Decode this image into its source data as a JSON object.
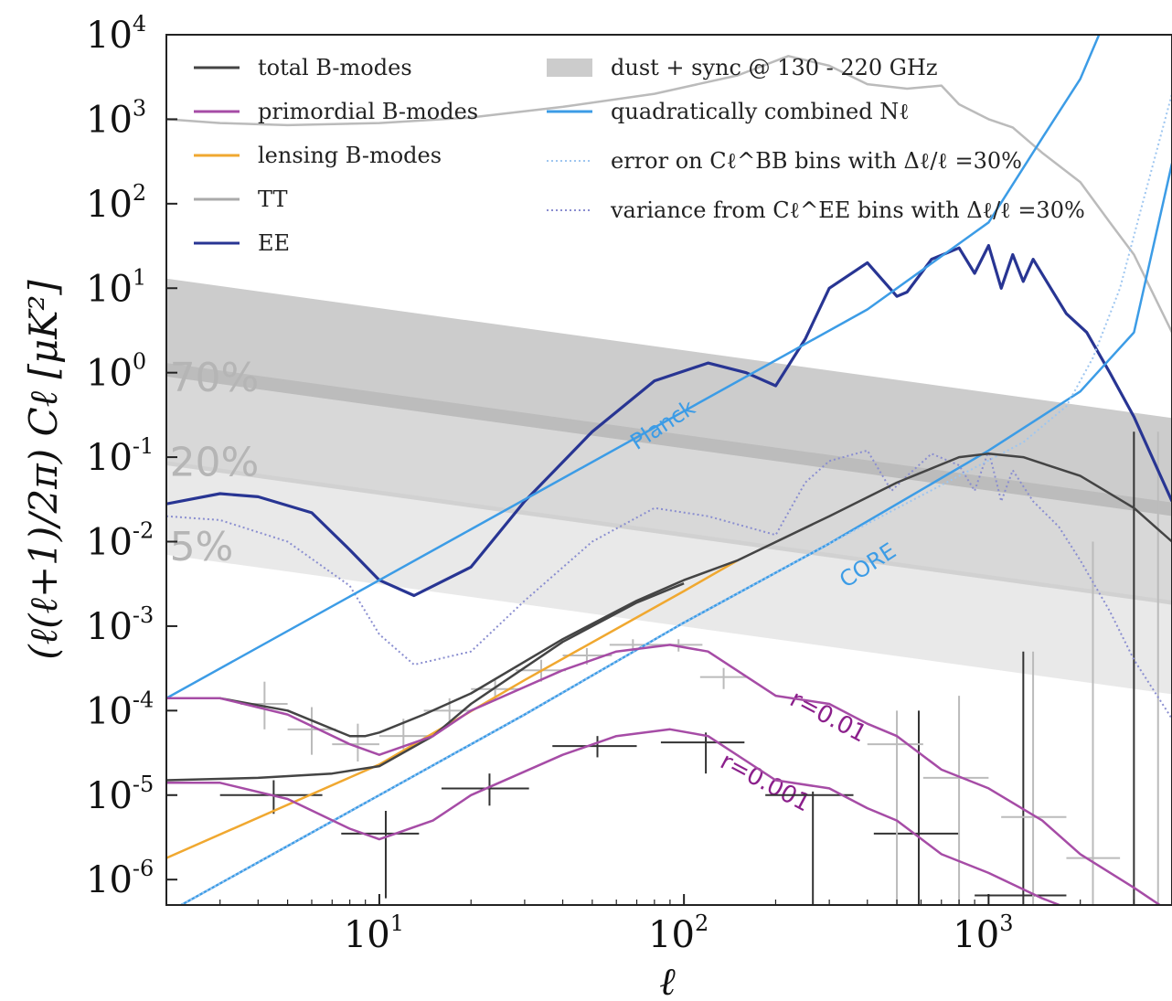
{
  "chart_data": {
    "type": "line",
    "x_scale": "log",
    "y_scale": "log",
    "xlim": [
      2,
      4000
    ],
    "ylim": [
      5e-07,
      10000
    ],
    "xlabel": "ℓ",
    "ylabel": "(ℓ(ℓ+1)/2π) Cℓ [μK²]",
    "x_ticks": [
      {
        "value": 10,
        "label": "10",
        "exp": "1"
      },
      {
        "value": 100,
        "label": "10",
        "exp": "2"
      },
      {
        "value": 1000,
        "label": "10",
        "exp": "3"
      }
    ],
    "y_ticks": [
      {
        "value": 1e-06,
        "label": "10",
        "exp": "-6"
      },
      {
        "value": 1e-05,
        "label": "10",
        "exp": "-5"
      },
      {
        "value": 0.0001,
        "label": "10",
        "exp": "-4"
      },
      {
        "value": 0.001,
        "label": "10",
        "exp": "-3"
      },
      {
        "value": 0.01,
        "label": "10",
        "exp": "-2"
      },
      {
        "value": 0.1,
        "label": "10",
        "exp": "-1"
      },
      {
        "value": 1,
        "label": "10",
        "exp": "0"
      },
      {
        "value": 10,
        "label": "10",
        "exp": "1"
      },
      {
        "value": 100,
        "label": "10",
        "exp": "2"
      },
      {
        "value": 1000,
        "label": "10",
        "exp": "3"
      },
      {
        "value": 10000,
        "label": "10",
        "exp": "4"
      }
    ],
    "legend_position": "top",
    "legend": [
      {
        "label": "total B-modes",
        "color": "#444444",
        "style": "solid"
      },
      {
        "label": "primordial B-modes",
        "color": "#a64ca6",
        "style": "solid"
      },
      {
        "label": "lensing B-modes",
        "color": "#f0a830",
        "style": "solid"
      },
      {
        "label": "TT",
        "color": "#aaaaaa",
        "style": "solid"
      },
      {
        "label": "EE",
        "color": "#283593",
        "style": "solid"
      },
      {
        "label": "dust + sync @ 130 - 220 GHz",
        "color": "#cccccc",
        "style": "band"
      },
      {
        "label": "quadratically combined Nℓ",
        "color": "#3c9ce6",
        "style": "solid"
      },
      {
        "label": "error on Cℓ^BB bins with Δℓ/ℓ =30%",
        "color": "#9ec6f0",
        "style": "dotted"
      },
      {
        "label": "variance from Cℓ^EE bins with Δℓ/ℓ =30%",
        "color": "#8a8ed0",
        "style": "dotted"
      }
    ],
    "foreground_bands": [
      {
        "label": "70%",
        "color": "#9a9a9a",
        "opacity": 0.5,
        "y_top_at_2": 13,
        "y_bot_at_2": 0.9,
        "slope": -0.5
      },
      {
        "label": "20%",
        "color": "#a8a8a8",
        "opacity": 0.45,
        "y_top_at_2": 1.3,
        "y_bot_at_2": 0.08,
        "slope": -0.5
      },
      {
        "label": "5%",
        "color": "#c8c8c8",
        "opacity": 0.4,
        "y_top_at_2": 0.09,
        "y_bot_at_2": 0.007,
        "slope": -0.5
      }
    ],
    "series": [
      {
        "name": "TT",
        "color": "#bbbbbb",
        "width": 2.5,
        "dash": "",
        "x": [
          2,
          3,
          5,
          10,
          20,
          40,
          80,
          150,
          220,
          300,
          400,
          540,
          700,
          800,
          1000,
          1200,
          1500,
          2000,
          2500,
          3000,
          4000
        ],
        "y": [
          1000,
          900,
          850,
          900,
          1050,
          1400,
          2000,
          3300,
          5600,
          4300,
          2600,
          2300,
          2500,
          1500,
          1000,
          800,
          400,
          180,
          60,
          25,
          3
        ]
      },
      {
        "name": "EE",
        "color": "#283593",
        "width": 3.2,
        "dash": "",
        "x": [
          2,
          3,
          4,
          6,
          8,
          10,
          13,
          20,
          30,
          50,
          80,
          120,
          160,
          200,
          250,
          300,
          400,
          500,
          540,
          650,
          800,
          900,
          1000,
          1100,
          1200,
          1300,
          1400,
          1600,
          1800,
          2100,
          2500,
          3000,
          4000
        ],
        "y": [
          0.028,
          0.037,
          0.034,
          0.022,
          0.008,
          0.0035,
          0.0023,
          0.005,
          0.03,
          0.2,
          0.8,
          1.3,
          1.0,
          0.7,
          2.5,
          10,
          20,
          8,
          9,
          22,
          30,
          15,
          32,
          10,
          25,
          12,
          22,
          10,
          5,
          3,
          1.0,
          0.3,
          0.03
        ]
      },
      {
        "name": "EE variance",
        "color": "#8a8ed0",
        "width": 2,
        "dash": "2,3",
        "x": [
          2,
          3,
          5,
          8,
          10,
          13,
          20,
          30,
          50,
          80,
          120,
          160,
          200,
          250,
          300,
          400,
          480,
          540,
          650,
          800,
          900,
          1000,
          1100,
          1200,
          1400,
          1700,
          2000,
          2500,
          3000,
          4000
        ],
        "y": [
          0.02,
          0.018,
          0.01,
          0.003,
          0.0008,
          0.00035,
          0.0005,
          0.002,
          0.01,
          0.025,
          0.02,
          0.015,
          0.012,
          0.05,
          0.09,
          0.12,
          0.04,
          0.06,
          0.11,
          0.08,
          0.04,
          0.12,
          0.03,
          0.07,
          0.03,
          0.015,
          0.006,
          0.0015,
          0.0004,
          8e-05
        ]
      },
      {
        "name": "quadratically combined Nℓ (Planck)",
        "color": "#3c9ce6",
        "width": 2.5,
        "dash": "",
        "x": [
          2,
          20,
          100,
          400,
          1000,
          1500,
          2000,
          2500
        ],
        "y": [
          0.00014,
          0.014,
          0.35,
          5.6,
          60,
          600,
          3000,
          20000
        ]
      },
      {
        "name": "quadratically combined Nℓ (CORE)",
        "color": "#3c9ce6",
        "width": 2.5,
        "dash": "",
        "x": [
          2,
          10,
          30,
          100,
          300,
          1000,
          2000,
          3000,
          4000
        ],
        "y": [
          4e-07,
          1e-05,
          9e-05,
          0.0011,
          0.0095,
          0.12,
          0.6,
          3,
          300
        ]
      },
      {
        "name": "error on Cℓ^BB bins",
        "color": "#9ec6f0",
        "width": 2,
        "dash": "2,3",
        "x": [
          2,
          10,
          30,
          100,
          300,
          800,
          1300,
          1800,
          2200,
          2700,
          3200,
          4000
        ],
        "y": [
          4e-07,
          1e-05,
          9e-05,
          0.0011,
          0.0095,
          0.06,
          0.15,
          0.4,
          1.5,
          10,
          100,
          2000
        ]
      },
      {
        "name": "lensing B-modes",
        "color": "#f0a830",
        "width": 2.5,
        "dash": "",
        "x": [
          2,
          10,
          30,
          100,
          150
        ],
        "y": [
          1.8e-06,
          2.3e-05,
          0.00023,
          0.0026,
          0.006
        ]
      },
      {
        "name": "total B-modes (r=0.01)",
        "color": "#444444",
        "width": 2.5,
        "dash": "",
        "x": [
          2,
          3,
          5,
          8,
          9,
          10,
          14,
          20,
          40,
          70,
          100,
          150,
          300,
          500,
          800,
          1000,
          1300,
          2000,
          3000,
          4000
        ],
        "y": [
          0.00014,
          0.00014,
          0.0001,
          5e-05,
          5e-05,
          5.5e-05,
          9e-05,
          0.00016,
          0.0007,
          0.002,
          0.0035,
          0.006,
          0.02,
          0.05,
          0.1,
          0.11,
          0.1,
          0.06,
          0.025,
          0.01
        ]
      },
      {
        "name": "total B-modes (r=0.001)",
        "color": "#444444",
        "width": 2.5,
        "dash": "",
        "x": [
          2,
          4,
          7,
          10,
          15,
          20,
          40,
          70,
          100
        ],
        "y": [
          1.5e-05,
          1.6e-05,
          1.8e-05,
          2.2e-05,
          5e-05,
          0.00012,
          0.00065,
          0.0019,
          0.0032
        ]
      },
      {
        "name": "primordial r=0.01",
        "color": "#a64ca6",
        "width": 2.5,
        "dash": "",
        "x": [
          2,
          3,
          5,
          8,
          10,
          15,
          20,
          40,
          60,
          90,
          120,
          200,
          300,
          400,
          500,
          700,
          1000,
          1500,
          2000,
          3000,
          4000
        ],
        "y": [
          0.00014,
          0.00014,
          9e-05,
          4e-05,
          3e-05,
          5e-05,
          0.0001,
          0.0003,
          0.0005,
          0.0006,
          0.0005,
          0.00015,
          0.00012,
          7e-05,
          5e-05,
          2e-05,
          1.2e-05,
          5e-06,
          2e-06,
          8e-07,
          4e-07
        ]
      },
      {
        "name": "primordial r=0.001",
        "color": "#a64ca6",
        "width": 2.5,
        "dash": "",
        "x": [
          2,
          3,
          5,
          8,
          10,
          15,
          20,
          40,
          60,
          90,
          120,
          200,
          300,
          400,
          500,
          700,
          1000,
          1500,
          2000,
          2400
        ],
        "y": [
          1.4e-05,
          1.4e-05,
          9e-06,
          4e-06,
          3e-06,
          5e-06,
          1e-05,
          3e-05,
          5e-05,
          6e-05,
          5e-05,
          1.5e-05,
          1.2e-05,
          7e-06,
          5e-06,
          2e-06,
          1.2e-06,
          6e-07,
          4e-07,
          3e-07
        ]
      }
    ],
    "error_bars": [
      {
        "x": 4.5,
        "xmin": 3,
        "xmax": 6.5,
        "y": 1e-05,
        "ymin": 6e-06,
        "ymax": 1.5e-05,
        "color": "#333333"
      },
      {
        "x": 10.5,
        "xmin": 7.5,
        "xmax": 13.5,
        "y": 3.5e-06,
        "ymin": 6e-07,
        "ymax": 6.5e-06,
        "color": "#333333"
      },
      {
        "x": 23,
        "xmin": 16,
        "xmax": 31,
        "y": 1.2e-05,
        "ymin": 7.5e-06,
        "ymax": 1.8e-05,
        "color": "#333333"
      },
      {
        "x": 52,
        "xmin": 37,
        "xmax": 70,
        "y": 3.8e-05,
        "ymin": 2.8e-05,
        "ymax": 5e-05,
        "color": "#333333"
      },
      {
        "x": 118,
        "xmin": 84,
        "xmax": 158,
        "y": 4.2e-05,
        "ymin": 1.8e-05,
        "ymax": 5.5e-05,
        "color": "#333333"
      },
      {
        "x": 265,
        "xmin": 185,
        "xmax": 360,
        "y": 1e-05,
        "ymin": 5e-07,
        "ymax": 1.1e-05,
        "color": "#333333"
      },
      {
        "x": 590,
        "xmin": 420,
        "xmax": 800,
        "y": 3.5e-06,
        "ymin": 5e-07,
        "ymax": 0.0001,
        "color": "#333333"
      },
      {
        "x": 1300,
        "xmin": 900,
        "xmax": 1800,
        "y": 6.5e-07,
        "ymin": 5e-07,
        "ymax": 0.0005,
        "color": "#333333"
      },
      {
        "x": 3000,
        "xmin": 2950,
        "xmax": 3050,
        "y": 5e-07,
        "ymin": 5e-07,
        "ymax": 0.2,
        "color": "#333333"
      },
      {
        "x": 4.2,
        "xmin": 3.5,
        "xmax": 5,
        "y": 0.00012,
        "ymin": 6e-05,
        "ymax": 0.00022,
        "color": "#bbbbbb"
      },
      {
        "x": 6,
        "xmin": 5,
        "xmax": 7.2,
        "y": 6e-05,
        "ymin": 3e-05,
        "ymax": 0.00011,
        "color": "#bbbbbb"
      },
      {
        "x": 8.5,
        "xmin": 7,
        "xmax": 10,
        "y": 4e-05,
        "ymin": 2.5e-05,
        "ymax": 7e-05,
        "color": "#bbbbbb"
      },
      {
        "x": 12,
        "xmin": 10,
        "xmax": 14.5,
        "y": 5e-05,
        "ymin": 3.5e-05,
        "ymax": 8e-05,
        "color": "#bbbbbb"
      },
      {
        "x": 17,
        "xmin": 14,
        "xmax": 20,
        "y": 0.0001,
        "ymin": 7e-05,
        "ymax": 0.00014,
        "color": "#bbbbbb"
      },
      {
        "x": 24,
        "xmin": 20,
        "xmax": 29,
        "y": 0.00018,
        "ymin": 0.00013,
        "ymax": 0.00024,
        "color": "#bbbbbb"
      },
      {
        "x": 34,
        "xmin": 28,
        "xmax": 41,
        "y": 0.0003,
        "ymin": 0.00022,
        "ymax": 0.0004,
        "color": "#bbbbbb"
      },
      {
        "x": 48,
        "xmin": 40,
        "xmax": 58,
        "y": 0.00045,
        "ymin": 0.00035,
        "ymax": 0.00055,
        "color": "#bbbbbb"
      },
      {
        "x": 68,
        "xmin": 57,
        "xmax": 82,
        "y": 0.0006,
        "ymin": 0.0005,
        "ymax": 0.0007,
        "color": "#bbbbbb"
      },
      {
        "x": 96,
        "xmin": 80,
        "xmax": 115,
        "y": 0.0006,
        "ymin": 0.0005,
        "ymax": 0.0007,
        "color": "#bbbbbb"
      },
      {
        "x": 135,
        "xmin": 113,
        "xmax": 162,
        "y": 0.00025,
        "ymin": 0.00018,
        "ymax": 0.00032,
        "color": "#bbbbbb"
      },
      {
        "x": 500,
        "xmin": 400,
        "xmax": 610,
        "y": 4e-05,
        "ymin": 5e-07,
        "ymax": 0.0001,
        "color": "#bbbbbb"
      },
      {
        "x": 800,
        "xmin": 610,
        "xmax": 1000,
        "y": 1.6e-05,
        "ymin": 5e-07,
        "ymax": 0.00015,
        "color": "#bbbbbb"
      },
      {
        "x": 1400,
        "xmin": 1100,
        "xmax": 1800,
        "y": 5.5e-06,
        "ymin": 5e-07,
        "ymax": 0.0005,
        "color": "#bbbbbb"
      },
      {
        "x": 2200,
        "xmin": 1800,
        "xmax": 2700,
        "y": 1.8e-06,
        "ymin": 5e-07,
        "ymax": 0.01,
        "color": "#bbbbbb"
      },
      {
        "x": 3600,
        "xmin": 3550,
        "xmax": 3650,
        "y": 5e-07,
        "ymin": 5e-07,
        "ymax": 0.2,
        "color": "#bbbbbb"
      }
    ],
    "annotations": [
      {
        "text": "70%",
        "x": 2.05,
        "y": 0.6,
        "color": "#b5b5b5",
        "size": 44,
        "rotate": 0
      },
      {
        "text": "20%",
        "x": 2.05,
        "y": 0.06,
        "color": "#b5b5b5",
        "size": 44,
        "rotate": 0
      },
      {
        "text": "5%",
        "x": 2.05,
        "y": 0.006,
        "color": "#b5b5b5",
        "size": 44,
        "rotate": 0
      },
      {
        "text": "Planck",
        "x": 70,
        "y": 0.12,
        "color": "#3c9ce6",
        "size": 24,
        "rotate": -33
      },
      {
        "text": "CORE",
        "x": 340,
        "y": 0.0028,
        "color": "#3c9ce6",
        "size": 24,
        "rotate": -33
      },
      {
        "text": "r=0.01",
        "x": 220,
        "y": 0.00012,
        "color": "#8b1f8b",
        "size": 26,
        "rotate": 28
      },
      {
        "text": "r=0.001",
        "x": 130,
        "y": 2.2e-05,
        "color": "#8b1f8b",
        "size": 26,
        "rotate": 28
      }
    ]
  }
}
